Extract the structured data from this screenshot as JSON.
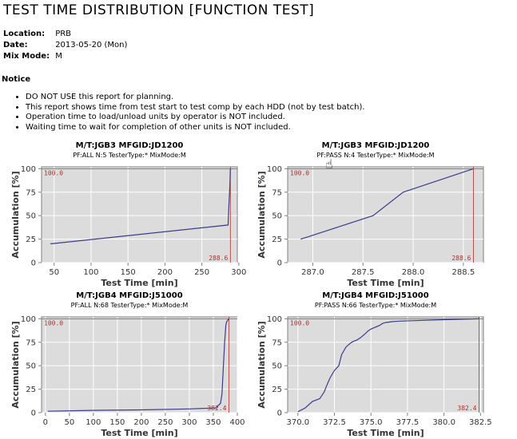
{
  "page": {
    "title": "TEST TIME DISTRIBUTION [FUNCTION TEST]",
    "location_label": "Location:",
    "location_value": "PRB",
    "date_label": "Date:",
    "date_value": "2013-05-20 (Mon)",
    "mix_label": "Mix Mode:",
    "mix_value": "M",
    "notice_title": "Notice",
    "notes": [
      "DO NOT USE this report for planning.",
      "This report shows time from test start to test comp by each HDD (not by test batch).",
      "Operation time to load/unload units by operator is NOT included.",
      "Waiting time to wait for completion of other units is NOT included."
    ]
  },
  "cursor_icon": "hand-pointer-icon",
  "colors": {
    "plot_bg": "#dcdcdc",
    "line": "#3c3c8c",
    "ref": "#b03030",
    "grid": "#ffffff"
  },
  "chart_data": [
    {
      "type": "line",
      "title": "M/T:JGB3  MFGID:JD1200",
      "subtitle": "PF:ALL  N:5  TesterType:*  MixMode:M",
      "xlabel": "Test Time [min]",
      "ylabel": "Accumulation [%]",
      "xlim": [
        33,
        298
      ],
      "ylim": [
        0,
        102
      ],
      "xticks": [
        50,
        100,
        150,
        200,
        250,
        300
      ],
      "xtick_labels": [
        "50",
        "100",
        "150",
        "200",
        "250",
        "300"
      ],
      "yticks": [
        0,
        25,
        50,
        75,
        100
      ],
      "ref_x": 288.6,
      "ref_x_label": "288.6",
      "ref_y": 100,
      "ref_y_label": "100.0",
      "series": [
        {
          "x": [
            45,
            285.5,
            286.5,
            287.8,
            288.6
          ],
          "y": [
            20,
            40,
            60,
            80,
            100
          ]
        }
      ]
    },
    {
      "type": "line",
      "title": "M/T:JGB3  MFGID:JD1200",
      "subtitle": "PF:PASS  N:4  TesterType:*  MixMode:M",
      "xlabel": "Test Time [min]",
      "ylabel": "Accumulation [%]",
      "xlim": [
        286.75,
        288.7
      ],
      "ylim": [
        0,
        102
      ],
      "xticks": [
        287.0,
        287.5,
        288.0,
        288.5
      ],
      "xtick_labels": [
        "287.0",
        "287.5",
        "288.0",
        "288.5"
      ],
      "yticks": [
        0,
        25,
        50,
        75,
        100
      ],
      "ref_x": 288.6,
      "ref_x_label": "288.6",
      "ref_y": 100,
      "ref_y_label": "100.0",
      "series": [
        {
          "x": [
            286.88,
            287.6,
            287.9,
            288.6
          ],
          "y": [
            25,
            50,
            75,
            100
          ]
        }
      ]
    },
    {
      "type": "line",
      "title": "M/T:JGB4  MFGID:J51000",
      "subtitle": "PF:ALL  N:68  TesterType:*  MixMode:M",
      "xlabel": "Test Time [min]",
      "ylabel": "Accumulation [%]",
      "xlim": [
        -8,
        400
      ],
      "ylim": [
        0,
        102
      ],
      "xticks": [
        0,
        50,
        100,
        150,
        200,
        250,
        300,
        350,
        400
      ],
      "xtick_labels": [
        "0",
        "50",
        "100",
        "150",
        "200",
        "250",
        "300",
        "350",
        "400"
      ],
      "yticks": [
        0,
        25,
        50,
        75,
        100
      ],
      "ref_x": 382.4,
      "ref_x_label": "382.4",
      "ref_y": 100,
      "ref_y_label": "100.0",
      "series": [
        {
          "x": [
            5,
            100,
            200,
            300,
            355,
            365,
            368,
            370,
            372,
            373.5,
            375,
            376,
            378,
            382.4
          ],
          "y": [
            1.5,
            2.5,
            3,
            4,
            5,
            10,
            20,
            40,
            60,
            75,
            85,
            93,
            97,
            100
          ]
        }
      ]
    },
    {
      "type": "line",
      "title": "M/T:JGB4  MFGID:J51000",
      "subtitle": "PF:PASS  N:66  TesterType:*  MixMode:M",
      "xlabel": "Test Time [min]",
      "ylabel": "Accumulation [%]",
      "xlim": [
        369.3,
        382.7
      ],
      "ylim": [
        0,
        102
      ],
      "xticks": [
        370,
        372.5,
        375,
        377.5,
        380,
        382.5
      ],
      "xtick_labels": [
        "370.0",
        "372.5",
        "375.0",
        "377.5",
        "380.0",
        "382.5"
      ],
      "yticks": [
        0,
        25,
        50,
        75,
        100
      ],
      "ref_x": 382.4,
      "ref_x_label": "382.4",
      "ref_y": 100,
      "ref_y_label": "100.0",
      "series": [
        {
          "x": [
            370.0,
            370.5,
            371.0,
            371.5,
            371.8,
            372.0,
            372.2,
            372.5,
            372.8,
            373.0,
            373.3,
            373.6,
            373.8,
            374.0,
            374.3,
            374.6,
            374.8,
            375.0,
            375.3,
            375.6,
            375.8,
            376.0,
            376.5,
            377.0,
            378.0,
            380.0,
            382.4
          ],
          "y": [
            1,
            5,
            12,
            15,
            22,
            30,
            37,
            45,
            50,
            62,
            70,
            74,
            76,
            77,
            80,
            84,
            87,
            89,
            91,
            93,
            95,
            96,
            97,
            97.5,
            98,
            99,
            100
          ]
        }
      ]
    }
  ]
}
